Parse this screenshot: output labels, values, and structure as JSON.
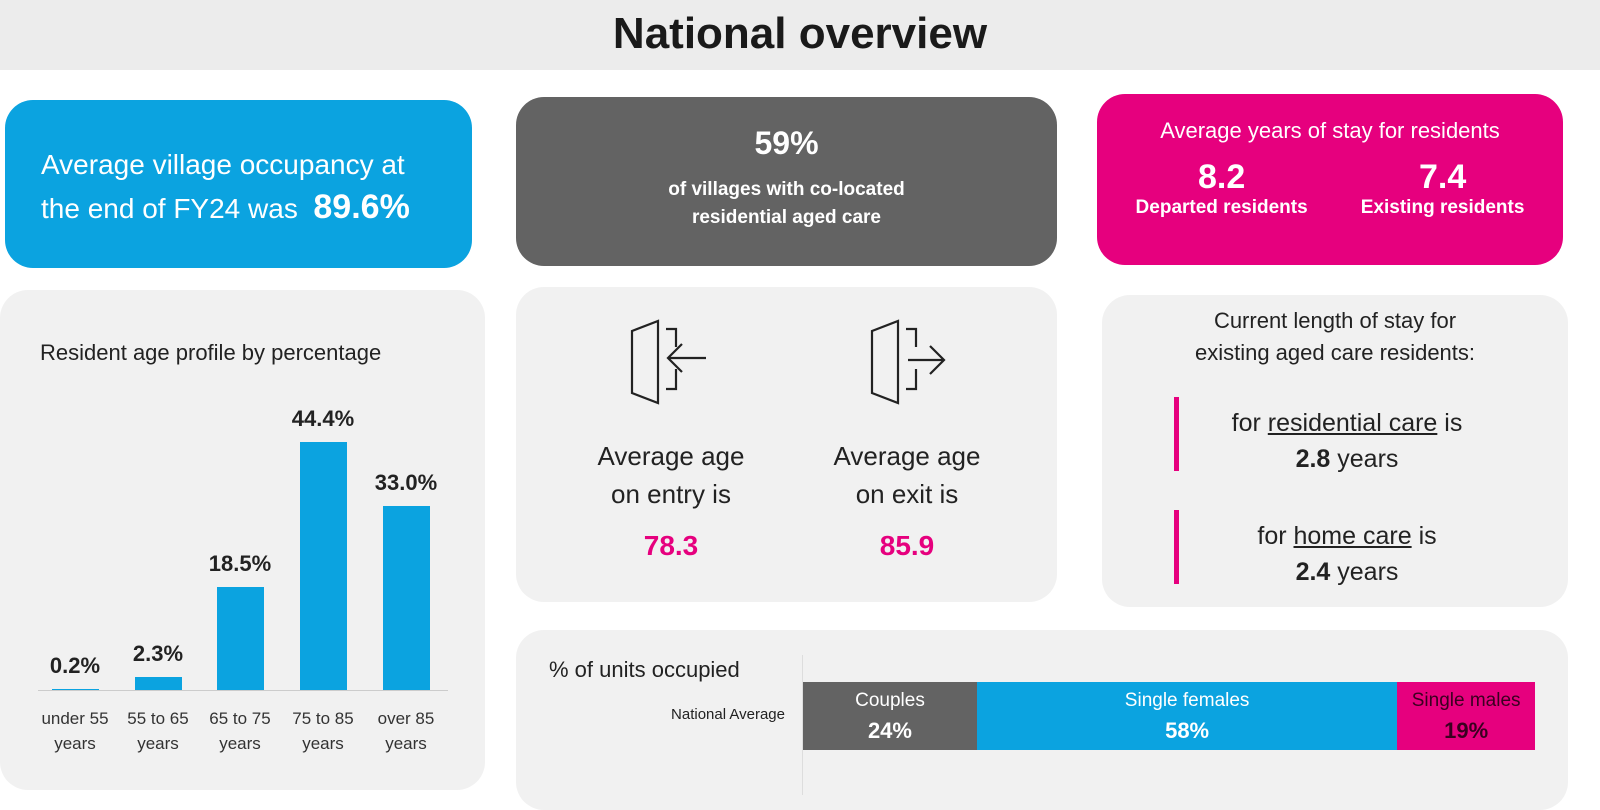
{
  "header": {
    "title": "National overview"
  },
  "occupancy": {
    "text1": "Average village occupancy at",
    "text2": "the end of FY24 was",
    "value": "89.6%"
  },
  "colocated": {
    "value": "59%",
    "line1": "of villages with co-located",
    "line2": "residential aged care"
  },
  "stay": {
    "title": "Average years of stay for residents",
    "departed_value": "8.2",
    "departed_label": "Departed residents",
    "existing_value": "7.4",
    "existing_label": "Existing residents"
  },
  "age": {
    "entry_l1": "Average age",
    "entry_l2": "on entry is",
    "entry_value": "78.3",
    "exit_l1": "Average age",
    "exit_l2": "on exit is",
    "exit_value": "85.9"
  },
  "aged_care": {
    "title1": "Current length of stay for",
    "title2": "existing aged care residents:",
    "res_pre": "for ",
    "res_link": "residential care",
    "res_post": " is",
    "res_value": "2.8",
    "res_unit": " years",
    "home_pre": "for ",
    "home_link": "home care",
    "home_post": " is",
    "home_value": "2.4",
    "home_unit": " years"
  },
  "colors": {
    "blue": "#0ba3e0",
    "pink": "#e6007e",
    "gray": "#636363"
  },
  "chart_data": [
    {
      "type": "bar",
      "title": "Resident age profile by percentage",
      "categories": [
        [
          "under 55",
          "years"
        ],
        [
          "55 to 65",
          "years"
        ],
        [
          "65 to 75",
          "years"
        ],
        [
          "75 to 85",
          "years"
        ],
        [
          "over 85",
          "years"
        ]
      ],
      "values": [
        0.2,
        2.3,
        18.5,
        44.4,
        33.0
      ],
      "labels": [
        "0.2%",
        "2.3%",
        "18.5%",
        "44.4%",
        "33.0%"
      ],
      "ylim": [
        0,
        44.4
      ]
    },
    {
      "type": "bar",
      "stacked": true,
      "orientation": "horizontal",
      "title": "% of units occupied",
      "categories": [
        "National Average"
      ],
      "series": [
        {
          "name": "Couples",
          "values": [
            24
          ],
          "label": "24%"
        },
        {
          "name": "Single females",
          "values": [
            58
          ],
          "label": "58%"
        },
        {
          "name": "Single males",
          "values": [
            19
          ],
          "label": "19%"
        }
      ]
    }
  ]
}
